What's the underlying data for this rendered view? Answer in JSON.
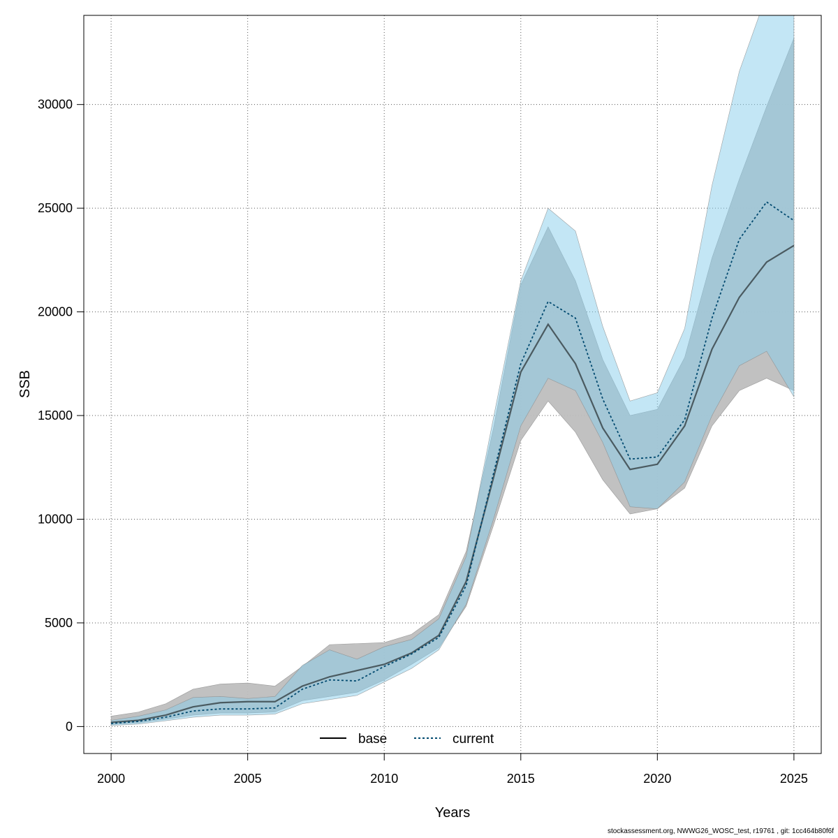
{
  "chart_data": {
    "type": "area",
    "xlabel": "Years",
    "ylabel": "SSB",
    "xlim": [
      1999,
      2026
    ],
    "ylim": [
      -1300,
      34300
    ],
    "x_ticks": [
      2000,
      2005,
      2010,
      2015,
      2020,
      2025
    ],
    "y_ticks": [
      0,
      5000,
      10000,
      15000,
      20000,
      25000,
      30000
    ],
    "grid": true,
    "legend_position": "bottom",
    "x": [
      2000,
      2001,
      2002,
      2003,
      2004,
      2005,
      2006,
      2007,
      2008,
      2009,
      2010,
      2011,
      2012,
      2013,
      2014,
      2015,
      2016,
      2017,
      2018,
      2019,
      2020,
      2021,
      2022,
      2023,
      2024,
      2025
    ],
    "series": [
      {
        "name": "base",
        "line_style": "solid",
        "line_color": "#000000",
        "band_color": "#bebebe",
        "values": [
          200,
          300,
          550,
          950,
          1150,
          1200,
          1200,
          1950,
          2400,
          2700,
          3000,
          3550,
          4400,
          7000,
          12000,
          17100,
          19400,
          17500,
          14400,
          12400,
          12650,
          14500,
          18200,
          20700,
          22400,
          23200
        ],
        "lower": [
          100,
          180,
          350,
          550,
          650,
          650,
          700,
          1250,
          1450,
          1650,
          2250,
          3000,
          3800,
          5800,
          9700,
          13800,
          15700,
          14200,
          11900,
          10250,
          10500,
          11500,
          14500,
          16200,
          16800,
          16200
        ],
        "upper": [
          500,
          700,
          1100,
          1800,
          2050,
          2100,
          1950,
          2900,
          3950,
          4000,
          4050,
          4450,
          5400,
          8450,
          14400,
          21300,
          24100,
          21500,
          17700,
          15000,
          15300,
          17800,
          22600,
          26400,
          29900,
          33200
        ]
      },
      {
        "name": "current",
        "line_style": "dotted",
        "line_color": "#00496f",
        "band_color": "#87ceeb",
        "values": [
          150,
          250,
          450,
          750,
          850,
          850,
          900,
          1800,
          2250,
          2200,
          2900,
          3500,
          4300,
          6800,
          12200,
          17500,
          20500,
          19700,
          15800,
          12900,
          13000,
          14800,
          19700,
          23500,
          25300,
          24400
        ],
        "lower": [
          50,
          120,
          280,
          450,
          550,
          550,
          600,
          1100,
          1300,
          1500,
          2150,
          2800,
          3700,
          5900,
          10000,
          14500,
          16800,
          16200,
          13700,
          10600,
          10500,
          11800,
          15000,
          17400,
          18100,
          15900
        ],
        "upper": [
          300,
          500,
          800,
          1400,
          1450,
          1350,
          1450,
          2950,
          3700,
          3250,
          3850,
          4200,
          5200,
          8200,
          14900,
          21500,
          25000,
          23900,
          19300,
          15700,
          16100,
          19200,
          26100,
          31600,
          35300,
          35300
        ]
      }
    ]
  },
  "footer": "stockassessment.org, NWWG26_WOSC_test, r19761 , git: 1cc464b80f6f"
}
